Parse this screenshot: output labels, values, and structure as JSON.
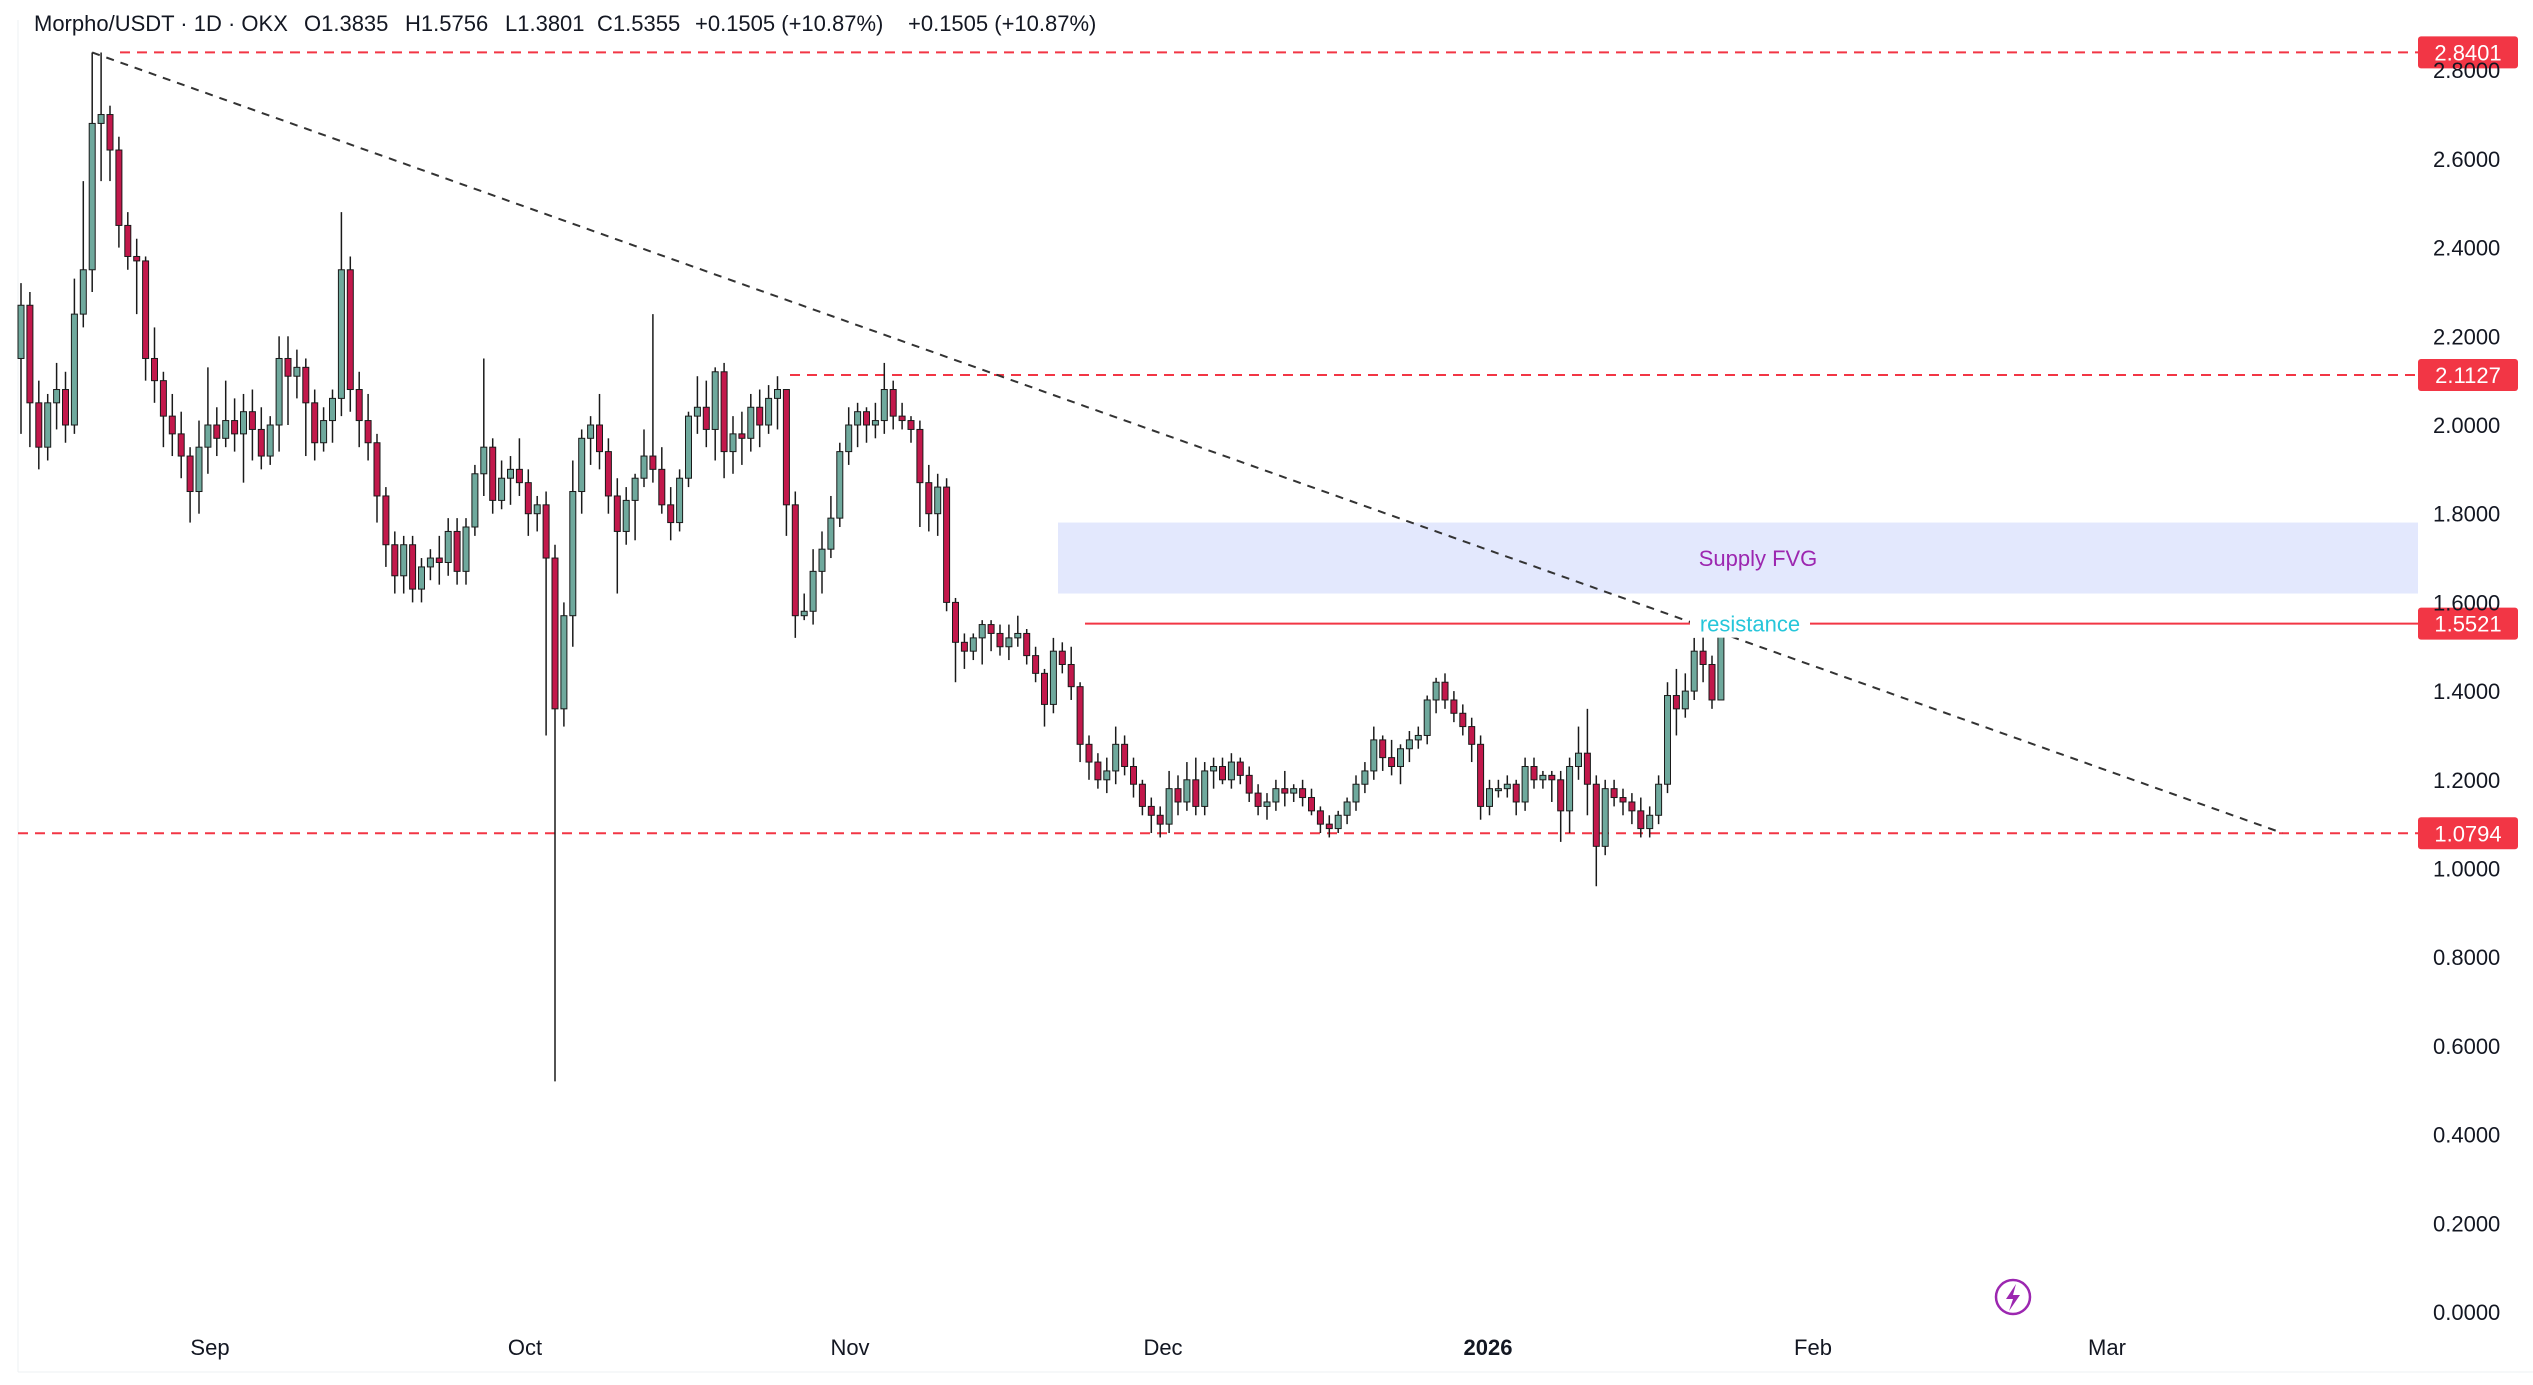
{
  "header": {
    "symbol": "Morpho/USDT · 1D · OKX",
    "open": "O1.3835",
    "high": "H1.5756",
    "low": "L1.3801",
    "close": "C1.5355",
    "change1": "+0.1505 (+10.87%)",
    "change2": "+0.1505 (+10.87%)"
  },
  "colors": {
    "up": "#6fa99d",
    "down": "#c2184b",
    "wick": "#1a1a1a",
    "level": "#f23645",
    "trend": "#333333",
    "fvg_fill": "#e3e8fd",
    "fvg_text": "#9c27b0",
    "resistance_text": "#26c6da",
    "axis_text": "#131722"
  },
  "chart_data": {
    "type": "candlestick",
    "title": "Morpho/USDT · 1D · OKX",
    "ylim": [
      0.0,
      2.84
    ],
    "y_ticks": [
      "0.0000",
      "0.2000",
      "0.4000",
      "0.6000",
      "0.8000",
      "1.0000",
      "1.2000",
      "1.4000",
      "1.6000",
      "1.8000",
      "2.0000",
      "2.2000",
      "2.4000",
      "2.6000",
      "2.8000"
    ],
    "x_labels": [
      "Sep",
      "Oct",
      "Nov",
      "Dec",
      "2026",
      "Feb",
      "Mar"
    ],
    "start_date": "2025-08-10",
    "ohlc": [
      [
        2.15,
        2.32,
        1.98,
        2.27
      ],
      [
        2.27,
        2.3,
        1.95,
        2.05
      ],
      [
        2.05,
        2.1,
        1.9,
        1.95
      ],
      [
        1.95,
        2.07,
        1.92,
        2.05
      ],
      [
        2.05,
        2.14,
        1.99,
        2.08
      ],
      [
        2.08,
        2.12,
        1.96,
        2.0
      ],
      [
        2.0,
        2.33,
        1.98,
        2.25
      ],
      [
        2.25,
        2.55,
        2.22,
        2.35
      ],
      [
        2.35,
        2.84,
        2.3,
        2.68
      ],
      [
        2.68,
        2.84,
        2.55,
        2.7
      ],
      [
        2.7,
        2.72,
        2.55,
        2.62
      ],
      [
        2.62,
        2.65,
        2.4,
        2.45
      ],
      [
        2.45,
        2.48,
        2.35,
        2.38
      ],
      [
        2.38,
        2.42,
        2.25,
        2.37
      ],
      [
        2.37,
        2.38,
        2.1,
        2.15
      ],
      [
        2.15,
        2.22,
        2.05,
        2.1
      ],
      [
        2.1,
        2.12,
        1.95,
        2.02
      ],
      [
        2.02,
        2.07,
        1.93,
        1.98
      ],
      [
        1.98,
        2.03,
        1.88,
        1.93
      ],
      [
        1.93,
        1.95,
        1.78,
        1.85
      ],
      [
        1.85,
        2.01,
        1.8,
        1.95
      ],
      [
        1.95,
        2.13,
        1.89,
        2.0
      ],
      [
        2.0,
        2.04,
        1.93,
        1.97
      ],
      [
        1.97,
        2.1,
        1.95,
        2.01
      ],
      [
        2.01,
        2.06,
        1.94,
        1.98
      ],
      [
        1.98,
        2.07,
        1.87,
        2.03
      ],
      [
        2.03,
        2.08,
        1.92,
        1.99
      ],
      [
        1.99,
        2.04,
        1.9,
        1.93
      ],
      [
        1.93,
        2.02,
        1.91,
        2.0
      ],
      [
        2.0,
        2.2,
        1.94,
        2.15
      ],
      [
        2.15,
        2.2,
        2.0,
        2.11
      ],
      [
        2.11,
        2.17,
        2.06,
        2.13
      ],
      [
        2.13,
        2.15,
        1.93,
        2.05
      ],
      [
        2.05,
        2.08,
        1.92,
        1.96
      ],
      [
        1.96,
        2.04,
        1.94,
        2.01
      ],
      [
        2.01,
        2.08,
        1.96,
        2.06
      ],
      [
        2.06,
        2.48,
        2.02,
        2.35
      ],
      [
        2.35,
        2.38,
        2.03,
        2.08
      ],
      [
        2.08,
        2.12,
        1.95,
        2.01
      ],
      [
        2.01,
        2.07,
        1.92,
        1.96
      ],
      [
        1.96,
        1.98,
        1.78,
        1.84
      ],
      [
        1.84,
        1.86,
        1.68,
        1.73
      ],
      [
        1.73,
        1.76,
        1.62,
        1.66
      ],
      [
        1.66,
        1.75,
        1.62,
        1.73
      ],
      [
        1.73,
        1.75,
        1.6,
        1.63
      ],
      [
        1.63,
        1.7,
        1.6,
        1.68
      ],
      [
        1.68,
        1.72,
        1.65,
        1.7
      ],
      [
        1.7,
        1.75,
        1.64,
        1.69
      ],
      [
        1.69,
        1.79,
        1.66,
        1.76
      ],
      [
        1.76,
        1.79,
        1.64,
        1.67
      ],
      [
        1.67,
        1.79,
        1.64,
        1.77
      ],
      [
        1.77,
        1.91,
        1.75,
        1.89
      ],
      [
        1.89,
        2.15,
        1.84,
        1.95
      ],
      [
        1.95,
        1.97,
        1.8,
        1.83
      ],
      [
        1.83,
        1.92,
        1.81,
        1.88
      ],
      [
        1.88,
        1.93,
        1.82,
        1.9
      ],
      [
        1.9,
        1.97,
        1.84,
        1.87
      ],
      [
        1.87,
        1.9,
        1.75,
        1.8
      ],
      [
        1.8,
        1.84,
        1.76,
        1.82
      ],
      [
        1.82,
        1.85,
        1.3,
        1.7
      ],
      [
        1.7,
        1.73,
        0.52,
        1.36
      ],
      [
        1.36,
        1.6,
        1.32,
        1.57
      ],
      [
        1.57,
        1.92,
        1.5,
        1.85
      ],
      [
        1.85,
        1.99,
        1.8,
        1.97
      ],
      [
        1.97,
        2.02,
        1.91,
        2.0
      ],
      [
        2.0,
        2.07,
        1.9,
        1.94
      ],
      [
        1.94,
        1.97,
        1.8,
        1.84
      ],
      [
        1.84,
        1.88,
        1.62,
        1.76
      ],
      [
        1.76,
        1.86,
        1.73,
        1.83
      ],
      [
        1.83,
        1.89,
        1.74,
        1.88
      ],
      [
        1.88,
        1.99,
        1.86,
        1.93
      ],
      [
        1.93,
        2.25,
        1.87,
        1.9
      ],
      [
        1.9,
        1.95,
        1.8,
        1.82
      ],
      [
        1.82,
        1.86,
        1.74,
        1.78
      ],
      [
        1.78,
        1.9,
        1.76,
        1.88
      ],
      [
        1.88,
        2.03,
        1.86,
        2.02
      ],
      [
        2.02,
        2.11,
        1.98,
        2.04
      ],
      [
        2.04,
        2.1,
        1.95,
        1.99
      ],
      [
        1.99,
        2.13,
        1.92,
        2.12
      ],
      [
        2.12,
        2.14,
        1.88,
        1.94
      ],
      [
        1.94,
        2.02,
        1.89,
        1.98
      ],
      [
        1.98,
        2.03,
        1.91,
        1.97
      ],
      [
        1.97,
        2.07,
        1.94,
        2.04
      ],
      [
        2.04,
        2.08,
        1.95,
        2.0
      ],
      [
        2.0,
        2.09,
        1.98,
        2.06
      ],
      [
        2.06,
        2.11,
        1.99,
        2.08
      ],
      [
        2.08,
        2.08,
        1.75,
        1.82
      ],
      [
        1.82,
        1.85,
        1.52,
        1.57
      ],
      [
        1.57,
        1.62,
        1.56,
        1.58
      ],
      [
        1.58,
        1.72,
        1.55,
        1.67
      ],
      [
        1.67,
        1.76,
        1.62,
        1.72
      ],
      [
        1.72,
        1.84,
        1.7,
        1.79
      ],
      [
        1.79,
        1.96,
        1.77,
        1.94
      ],
      [
        1.94,
        2.04,
        1.91,
        2.0
      ],
      [
        2.0,
        2.05,
        1.95,
        2.03
      ],
      [
        2.03,
        2.04,
        1.96,
        2.0
      ],
      [
        2.0,
        2.05,
        1.97,
        2.01
      ],
      [
        2.01,
        2.14,
        1.98,
        2.08
      ],
      [
        2.08,
        2.1,
        1.99,
        2.02
      ],
      [
        2.02,
        2.05,
        1.99,
        2.01
      ],
      [
        2.01,
        2.02,
        1.96,
        1.99
      ],
      [
        1.99,
        2.01,
        1.77,
        1.87
      ],
      [
        1.87,
        1.91,
        1.76,
        1.8
      ],
      [
        1.8,
        1.89,
        1.75,
        1.86
      ],
      [
        1.86,
        1.88,
        1.58,
        1.6
      ],
      [
        1.6,
        1.61,
        1.42,
        1.51
      ],
      [
        1.51,
        1.53,
        1.45,
        1.49
      ],
      [
        1.49,
        1.53,
        1.47,
        1.52
      ],
      [
        1.52,
        1.56,
        1.46,
        1.55
      ],
      [
        1.55,
        1.56,
        1.49,
        1.53
      ],
      [
        1.53,
        1.55,
        1.48,
        1.5
      ],
      [
        1.5,
        1.55,
        1.47,
        1.52
      ],
      [
        1.52,
        1.57,
        1.5,
        1.53
      ],
      [
        1.53,
        1.54,
        1.46,
        1.48
      ],
      [
        1.48,
        1.5,
        1.42,
        1.44
      ],
      [
        1.44,
        1.45,
        1.32,
        1.37
      ],
      [
        1.37,
        1.52,
        1.35,
        1.49
      ],
      [
        1.49,
        1.51,
        1.44,
        1.46
      ],
      [
        1.46,
        1.5,
        1.38,
        1.41
      ],
      [
        1.41,
        1.42,
        1.24,
        1.28
      ],
      [
        1.28,
        1.3,
        1.2,
        1.24
      ],
      [
        1.24,
        1.26,
        1.18,
        1.2
      ],
      [
        1.2,
        1.25,
        1.17,
        1.22
      ],
      [
        1.22,
        1.32,
        1.19,
        1.28
      ],
      [
        1.28,
        1.3,
        1.21,
        1.23
      ],
      [
        1.23,
        1.25,
        1.16,
        1.19
      ],
      [
        1.19,
        1.2,
        1.12,
        1.14
      ],
      [
        1.14,
        1.16,
        1.08,
        1.12
      ],
      [
        1.12,
        1.14,
        1.07,
        1.1
      ],
      [
        1.1,
        1.22,
        1.08,
        1.18
      ],
      [
        1.18,
        1.21,
        1.12,
        1.15
      ],
      [
        1.15,
        1.24,
        1.13,
        1.2
      ],
      [
        1.2,
        1.25,
        1.12,
        1.14
      ],
      [
        1.14,
        1.24,
        1.12,
        1.22
      ],
      [
        1.22,
        1.25,
        1.18,
        1.23
      ],
      [
        1.23,
        1.25,
        1.19,
        1.2
      ],
      [
        1.2,
        1.26,
        1.18,
        1.24
      ],
      [
        1.24,
        1.25,
        1.19,
        1.21
      ],
      [
        1.21,
        1.23,
        1.15,
        1.17
      ],
      [
        1.17,
        1.19,
        1.12,
        1.14
      ],
      [
        1.14,
        1.17,
        1.11,
        1.15
      ],
      [
        1.15,
        1.2,
        1.13,
        1.18
      ],
      [
        1.18,
        1.22,
        1.14,
        1.17
      ],
      [
        1.17,
        1.19,
        1.15,
        1.18
      ],
      [
        1.18,
        1.2,
        1.14,
        1.16
      ],
      [
        1.16,
        1.18,
        1.12,
        1.13
      ],
      [
        1.13,
        1.14,
        1.08,
        1.1
      ],
      [
        1.1,
        1.12,
        1.07,
        1.09
      ],
      [
        1.09,
        1.13,
        1.08,
        1.12
      ],
      [
        1.12,
        1.16,
        1.1,
        1.15
      ],
      [
        1.15,
        1.21,
        1.13,
        1.19
      ],
      [
        1.19,
        1.24,
        1.17,
        1.22
      ],
      [
        1.22,
        1.32,
        1.2,
        1.29
      ],
      [
        1.29,
        1.3,
        1.22,
        1.25
      ],
      [
        1.25,
        1.29,
        1.21,
        1.23
      ],
      [
        1.23,
        1.28,
        1.19,
        1.27
      ],
      [
        1.27,
        1.31,
        1.24,
        1.29
      ],
      [
        1.29,
        1.32,
        1.27,
        1.3
      ],
      [
        1.3,
        1.39,
        1.28,
        1.38
      ],
      [
        1.38,
        1.43,
        1.35,
        1.42
      ],
      [
        1.42,
        1.44,
        1.36,
        1.38
      ],
      [
        1.38,
        1.4,
        1.33,
        1.35
      ],
      [
        1.35,
        1.37,
        1.3,
        1.32
      ],
      [
        1.32,
        1.34,
        1.24,
        1.28
      ],
      [
        1.28,
        1.3,
        1.11,
        1.14
      ],
      [
        1.14,
        1.2,
        1.12,
        1.18
      ],
      [
        1.18,
        1.2,
        1.16,
        1.18
      ],
      [
        1.18,
        1.21,
        1.16,
        1.19
      ],
      [
        1.19,
        1.2,
        1.12,
        1.15
      ],
      [
        1.15,
        1.25,
        1.13,
        1.23
      ],
      [
        1.23,
        1.25,
        1.18,
        1.2
      ],
      [
        1.2,
        1.22,
        1.18,
        1.21
      ],
      [
        1.21,
        1.22,
        1.15,
        1.2
      ],
      [
        1.2,
        1.22,
        1.06,
        1.13
      ],
      [
        1.13,
        1.25,
        1.08,
        1.23
      ],
      [
        1.23,
        1.32,
        1.2,
        1.26
      ],
      [
        1.26,
        1.36,
        1.12,
        1.19
      ],
      [
        1.19,
        1.21,
        0.96,
        1.05
      ],
      [
        1.05,
        1.2,
        1.03,
        1.18
      ],
      [
        1.18,
        1.2,
        1.14,
        1.16
      ],
      [
        1.16,
        1.18,
        1.12,
        1.15
      ],
      [
        1.15,
        1.17,
        1.1,
        1.13
      ],
      [
        1.13,
        1.16,
        1.07,
        1.09
      ],
      [
        1.09,
        1.14,
        1.07,
        1.12
      ],
      [
        1.12,
        1.21,
        1.1,
        1.19
      ],
      [
        1.19,
        1.42,
        1.17,
        1.39
      ],
      [
        1.39,
        1.45,
        1.3,
        1.36
      ],
      [
        1.36,
        1.44,
        1.34,
        1.4
      ],
      [
        1.4,
        1.52,
        1.38,
        1.49
      ],
      [
        1.49,
        1.54,
        1.42,
        1.46
      ],
      [
        1.46,
        1.48,
        1.36,
        1.38
      ],
      [
        1.38,
        1.58,
        1.38,
        1.54
      ]
    ],
    "levels": [
      {
        "value": 2.8401,
        "label": "2.8401"
      },
      {
        "value": 2.1127,
        "label": "2.1127"
      },
      {
        "value": 1.5521,
        "label": "1.5521"
      },
      {
        "value": 1.0794,
        "label": "1.0794"
      }
    ],
    "resistance_label": "resistance",
    "fvg": {
      "top": 1.78,
      "bottom": 1.62,
      "label": "Supply FVG"
    },
    "trendline": {
      "from": [
        8,
        2.84
      ],
      "to": [
        226,
        1.08
      ]
    }
  }
}
